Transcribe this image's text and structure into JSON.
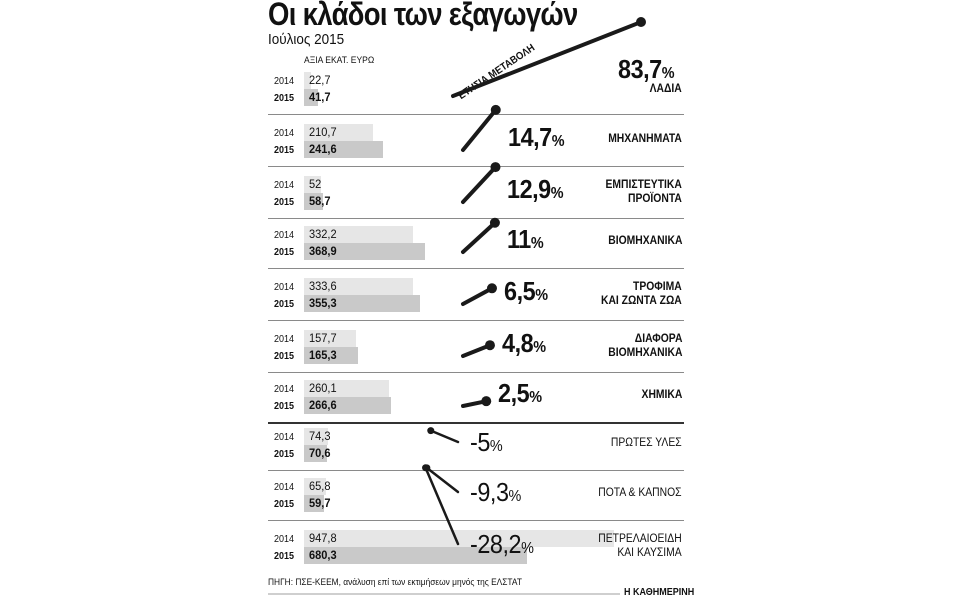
{
  "title": "Οι κλάδοι των εξαγωγών",
  "subtitle": "Ιούλιος 2015",
  "unit_label": "ΑΞΙΑ ΕΚΑΤ. ΕΥΡΩ",
  "slope_label": "ΕΤΗΣΙΑ ΜΕΤΑΒΟΛΗ",
  "source": "ΠΗΓΗ: ΠΣΕ-ΚΕΕΜ, ανάλυση επί των εκτιμήσεων μηνός της ΕΛΣΤΑΤ",
  "brand": "Η ΚΑΘΗΜΕΡΙΝΗ",
  "year_labels": [
    "2014",
    "2015"
  ],
  "colors": {
    "bar_2014": "#e6e6e6",
    "bar_2015": "#c9c9c9",
    "slope": "#1a1a1a"
  },
  "chart_data": {
    "type": "bar",
    "categories": [
      "ΛΑΔΙΑ",
      "ΜΗΧΑΝΗΜΑΤΑ",
      "ΕΜΠΙΣΤΕΥΤΙΚΑ\nΠΡΟΪΟΝΤΑ",
      "ΒΙΟΜΗΧΑΝΙΚΑ",
      "ΤΡΟΦΙΜΑ\nΚΑΙ ΖΩΝΤΑ ΖΩΑ",
      "ΔΙΑΦΟΡΑ\nΒΙΟΜΗΧΑΝΙΚΑ",
      "ΧΗΜΙΚΑ",
      "ΠΡΩΤΕΣ ΥΛΕΣ",
      "ΠΟΤΑ & ΚΑΠΝΟΣ",
      "ΠΕΤΡΕΛΑΙΟΕΙΔΗ\nΚΑΙ ΚΑΥΣΙΜΑ"
    ],
    "series": [
      {
        "name": "2014",
        "values": [
          22.7,
          210.7,
          52,
          332.2,
          333.6,
          157.7,
          260.1,
          74.3,
          65.8,
          947.8
        ],
        "labels": [
          "22,7",
          "210,7",
          "52",
          "332,2",
          "333,6",
          "157,7",
          "260,1",
          "74,3",
          "65,8",
          "947,8"
        ]
      },
      {
        "name": "2015",
        "values": [
          41.7,
          241.6,
          58.7,
          368.9,
          355.3,
          165.3,
          266.6,
          70.6,
          59.7,
          680.3
        ],
        "labels": [
          "41,7",
          "241,6",
          "58,7",
          "368,9",
          "355,3",
          "165,3",
          "266,6",
          "70,6",
          "59,7",
          "680,3"
        ]
      }
    ],
    "annual_change_pct": [
      83.7,
      14.7,
      12.9,
      11,
      6.5,
      4.8,
      2.5,
      -5,
      -9.3,
      -28.2
    ],
    "annual_change_labels": [
      "83,7",
      "14,7",
      "12,9",
      "11",
      "6,5",
      "4,8",
      "2,5",
      "-5",
      "-9,3",
      "-28,2"
    ],
    "pct_symbol": "%",
    "xlabel": "",
    "ylabel": "ΑΞΙΑ ΕΚΑΤ. ΕΥΡΩ"
  }
}
